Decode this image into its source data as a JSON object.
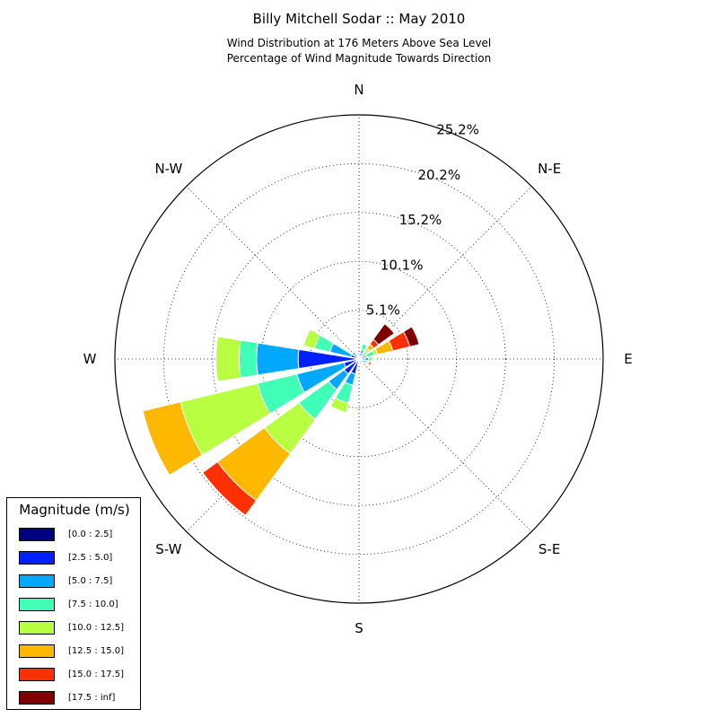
{
  "title": "Billy Mitchell Sodar :: May 2010",
  "subtitle_lines": [
    "Wind Distribution at 176 Meters Above Sea Level",
    "Percentage of Wind Magnitude Towards Direction"
  ],
  "legend": {
    "title": "Magnitude (m/s)",
    "placement": "lower-left"
  },
  "chart_data": {
    "type": "windrose",
    "directions": [
      "N",
      "N-E",
      "E",
      "S-E",
      "S",
      "S-W",
      "W",
      "N-W"
    ],
    "radial_ticks": [
      "5.1%",
      "10.1%",
      "15.2%",
      "20.2%",
      "25.2%"
    ],
    "radial_tick_values": [
      5.05,
      10.1,
      15.15,
      20.2,
      25.25
    ],
    "rmax": 25.25,
    "grid": true,
    "bins": [
      "[0.0 : 2.5]",
      "[2.5 : 5.0]",
      "[5.0 : 7.5]",
      "[7.5 : 10.0]",
      "[10.0 : 12.5]",
      "[12.5 : 15.0]",
      "[15.0 : 17.5]",
      "[17.5 : inf]"
    ],
    "colors": [
      "#000080",
      "#0020ff",
      "#00a8ff",
      "#40ffb7",
      "#b7ff40",
      "#ffb800",
      "#ff3000",
      "#800000"
    ],
    "sectors": [
      {
        "angle": 0,
        "values": [
          0.2,
          0.2,
          0.2,
          0.1,
          0.0,
          0.0,
          0.0,
          0.0
        ]
      },
      {
        "angle": 22.5,
        "values": [
          0.3,
          0.3,
          0.4,
          0.6,
          0.0,
          0.0,
          0.0,
          0.0
        ]
      },
      {
        "angle": 45,
        "values": [
          0.3,
          0.2,
          0.2,
          0.3,
          0.4,
          0.5,
          0.6,
          2.0
        ]
      },
      {
        "angle": 67.5,
        "values": [
          0.2,
          0.3,
          0.3,
          0.8,
          0.4,
          1.6,
          1.8,
          1.0
        ]
      },
      {
        "angle": 90,
        "values": [
          0.3,
          0.3,
          0.4,
          0.3,
          0.2,
          0.1,
          0.0,
          0.0
        ]
      },
      {
        "angle": 112.5,
        "values": [
          0.2,
          0.2,
          0.3,
          0.2,
          0.1,
          0.1,
          0.2,
          0.0
        ]
      },
      {
        "angle": 135,
        "values": [
          0.2,
          0.3,
          0.1,
          0.0,
          0.0,
          0.0,
          0.0,
          0.0
        ]
      },
      {
        "angle": 157.5,
        "values": [
          0.2,
          0.3,
          0.1,
          0.0,
          0.0,
          0.0,
          0.0,
          0.0
        ]
      },
      {
        "angle": 180,
        "values": [
          0.2,
          0.2,
          0.1,
          0.1,
          0.0,
          0.0,
          0.0,
          0.0
        ]
      },
      {
        "angle": 202.5,
        "values": [
          0.3,
          1.3,
          1.2,
          1.9,
          1.0,
          0.0,
          0.0,
          0.0
        ]
      },
      {
        "angle": 225,
        "values": [
          0.3,
          1.6,
          2.0,
          3.8,
          4.4,
          6.0,
          1.9,
          0.0
        ]
      },
      {
        "angle": 247.5,
        "values": [
          0.3,
          1.3,
          5.0,
          4.2,
          8.2,
          4.0,
          0.0,
          0.0
        ]
      },
      {
        "angle": 270,
        "values": [
          0.3,
          6.0,
          4.3,
          1.8,
          2.4,
          0.0,
          0.0,
          0.0
        ]
      },
      {
        "angle": 292.5,
        "values": [
          0.2,
          0.7,
          2.2,
          1.6,
          1.2,
          0.0,
          0.0,
          0.0
        ]
      },
      {
        "angle": 315,
        "values": [
          0.3,
          0.3,
          0.3,
          0.1,
          0.0,
          0.0,
          0.0,
          0.0
        ]
      },
      {
        "angle": 337.5,
        "values": [
          0.2,
          0.2,
          0.1,
          0.0,
          0.0,
          0.0,
          0.0,
          0.0
        ]
      }
    ]
  }
}
